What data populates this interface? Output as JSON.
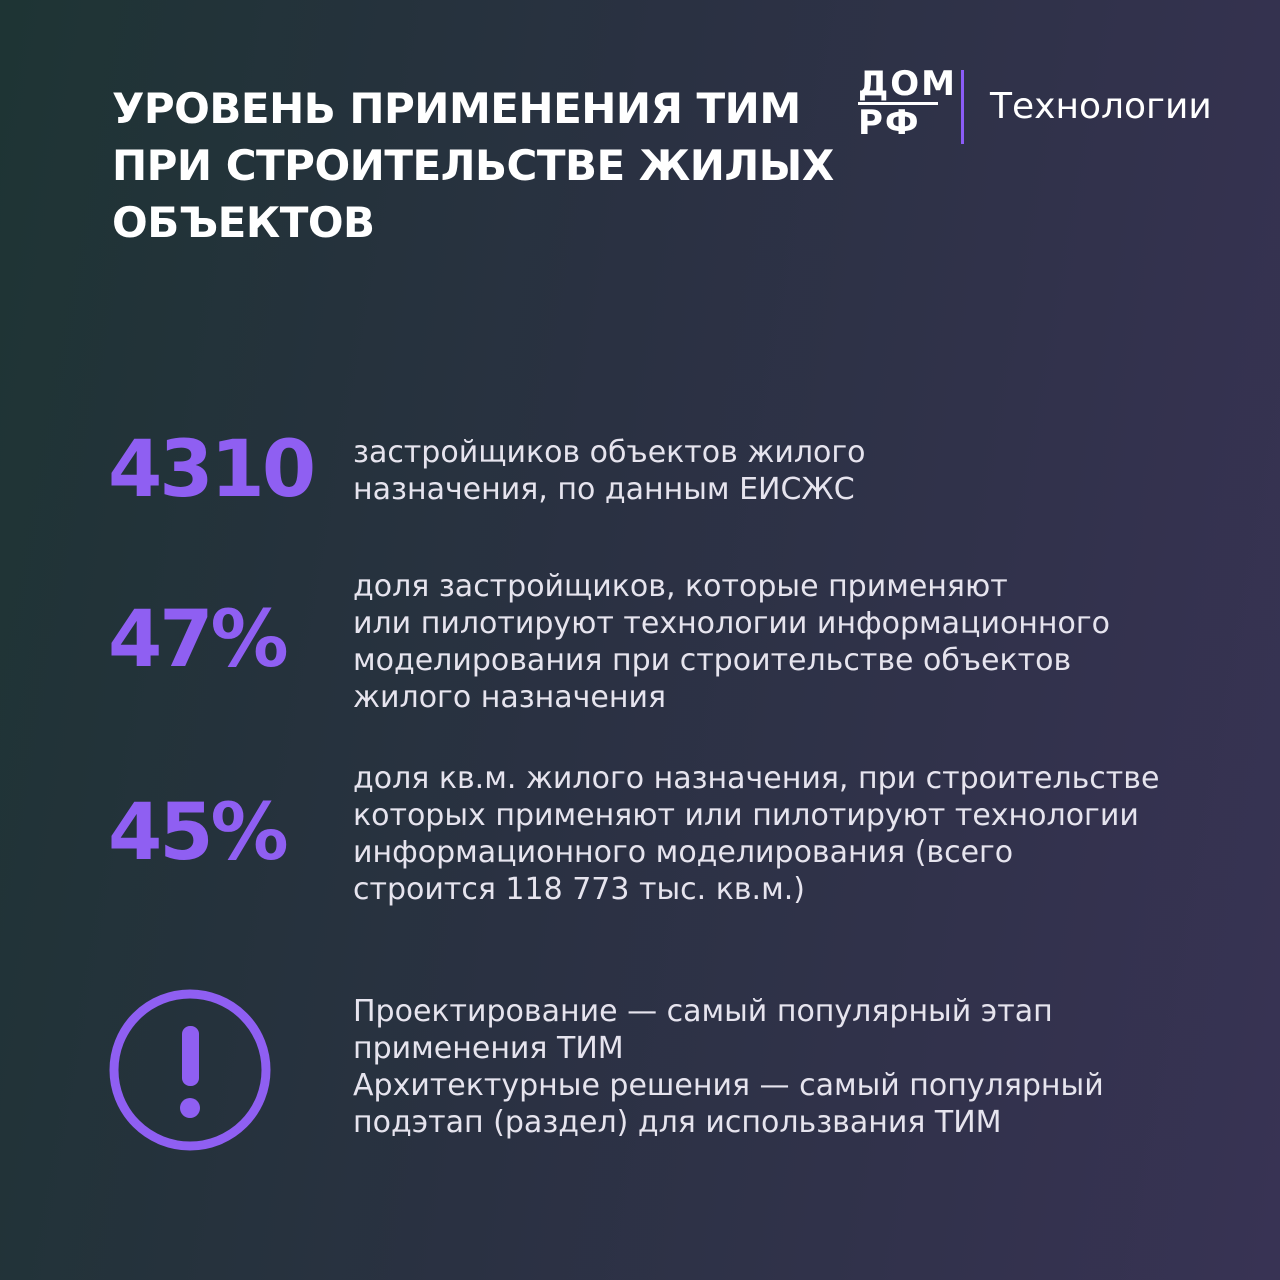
{
  "header": {
    "title_lines": [
      "УРОВЕНЬ ПРИМЕНЕНИЯ ТИМ",
      "ПРИ СТРОИТЕЛЬСТВЕ ЖИЛЫХ",
      "ОБЪЕКТОВ"
    ]
  },
  "brand": {
    "logo_lines": [
      "ДОМ",
      "РФ"
    ],
    "section": "Технологии"
  },
  "stats": [
    {
      "value": "4310",
      "lines": [
        "застройщиков объектов жилого",
        "назначения, по данным ЕИСЖС"
      ]
    },
    {
      "value": "47%",
      "lines": [
        "доля застройщиков, которые применяют",
        "или пилотируют технологии информационного",
        "моделирования при строительстве объектов",
        "жилого назначения"
      ]
    },
    {
      "value": "45%",
      "lines": [
        "доля кв.м. жилого назначения, при строительстве",
        "которых применяют или пилотируют технологии",
        "информационного моделирования (всего",
        "строится 118 773 тыс. кв.м.)"
      ]
    }
  ],
  "note": {
    "lines": [
      "Проектирование — самый популярный этап",
      "применения ТИМ",
      "Архитектурные решения — самый популярный",
      "подэтап (раздел) для использвания ТИМ"
    ]
  }
}
